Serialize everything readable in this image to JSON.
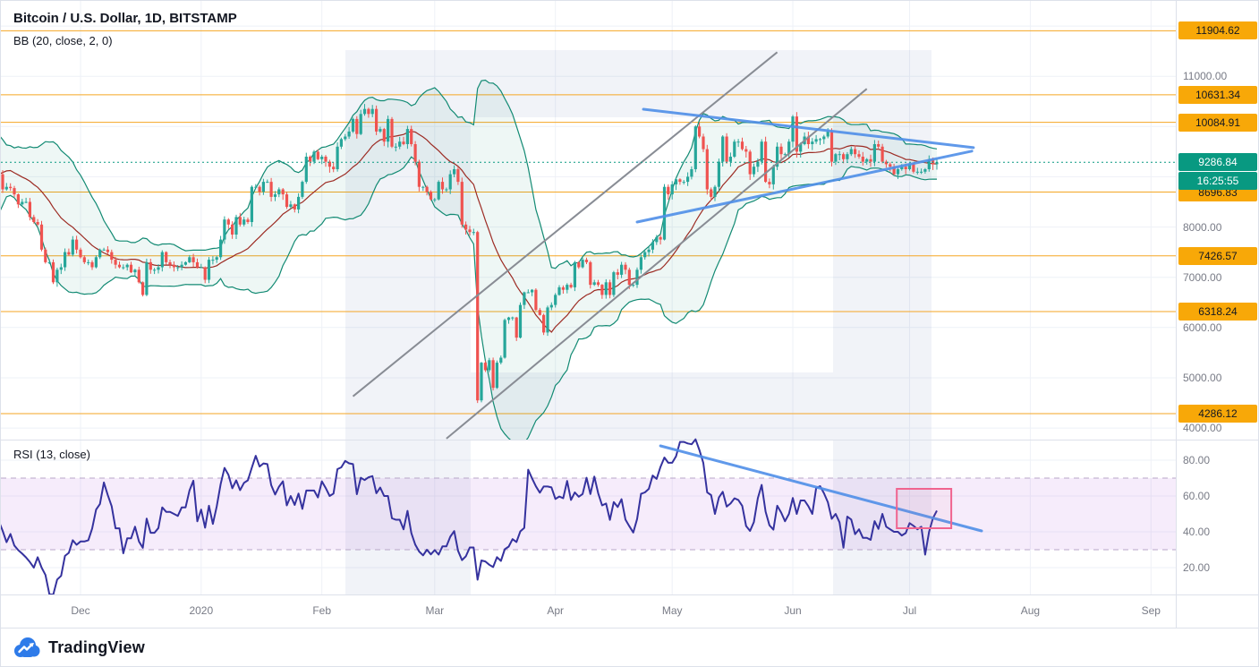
{
  "header": {
    "symbol_title": "Bitcoin / U.S. Dollar, 1D, BITSTAMP",
    "indicator_label": "BB (20, close, 2, 0)",
    "rsi_label": "RSI (13, close)"
  },
  "price_axis": {
    "levels": [
      {
        "label": "11904.62",
        "price": 11904.62
      },
      {
        "label": "10631.34",
        "price": 10631.34
      },
      {
        "label": "10084.91",
        "price": 10084.91
      },
      {
        "label": "8696.83",
        "price": 8696.83
      },
      {
        "label": "7426.57",
        "price": 7426.57
      },
      {
        "label": "6318.24",
        "price": 6318.24
      },
      {
        "label": "4286.12",
        "price": 4286.12
      }
    ],
    "ticks": [
      {
        "label": "11000.00",
        "price": 11000
      },
      {
        "label": "8000.00",
        "price": 8000
      },
      {
        "label": "7000.00",
        "price": 7000
      },
      {
        "label": "6000.00",
        "price": 6000
      },
      {
        "label": "5000.00",
        "price": 5000
      },
      {
        "label": "4000.00",
        "price": 4000
      }
    ],
    "current": {
      "label": "9286.84",
      "price": 9286.84,
      "countdown": "16:25:55"
    }
  },
  "rsi_axis": {
    "ticks": [
      {
        "label": "80.00",
        "value": 80
      },
      {
        "label": "60.00",
        "value": 60
      },
      {
        "label": "40.00",
        "value": 40
      },
      {
        "label": "20.00",
        "value": 20
      }
    ],
    "band": [
      30,
      70
    ]
  },
  "time_axis": {
    "months": [
      {
        "label": "Dec",
        "day": 20
      },
      {
        "label": "2020",
        "day": 51
      },
      {
        "label": "Feb",
        "day": 82
      },
      {
        "label": "Mar",
        "day": 111
      },
      {
        "label": "Apr",
        "day": 142
      },
      {
        "label": "May",
        "day": 172
      },
      {
        "label": "Jun",
        "day": 203
      },
      {
        "label": "Jul",
        "day": 233
      },
      {
        "label": "Aug",
        "day": 264
      },
      {
        "label": "Sep",
        "day": 295
      }
    ]
  },
  "chart_data": {
    "type": "candlestick",
    "symbol": "Bitcoin / U.S. Dollar",
    "interval": "1D",
    "exchange": "BITSTAMP",
    "price_ylim": [
      3770,
      12500
    ],
    "rsi_ylim": [
      5,
      91.5
    ],
    "warmup_bars": 20,
    "indicators": {
      "bollinger": {
        "length": 20,
        "source": "close",
        "stdev": 2,
        "offset": 0
      },
      "rsi": {
        "length": 13,
        "source": "close"
      }
    },
    "closes": [
      8050,
      8150,
      8650,
      9550,
      9250,
      9400,
      9200,
      9150,
      9400,
      9150,
      9250,
      9200,
      9300,
      9350,
      9250,
      9300,
      8800,
      8750,
      8800,
      9050,
      8750,
      8800,
      8775,
      8650,
      8450,
      8500,
      8500,
      8200,
      8100,
      8050,
      7550,
      7300,
      7300,
      6900,
      7150,
      7200,
      7500,
      7450,
      7750,
      7550,
      7400,
      7300,
      7300,
      7200,
      7400,
      7550,
      7550,
      7500,
      7350,
      7250,
      7200,
      7200,
      7250,
      7100,
      7150,
      6900,
      6650,
      7300,
      7150,
      7150,
      7200,
      7500,
      7300,
      7250,
      7200,
      7200,
      7250,
      7300,
      7400,
      7300,
      7200,
      7200,
      6950,
      7350,
      7350,
      7400,
      7750,
      8150,
      8050,
      7850,
      8200,
      8050,
      8150,
      8100,
      8800,
      8800,
      8700,
      8900,
      8900,
      8600,
      8650,
      8750,
      8650,
      8400,
      8450,
      8350,
      8600,
      8900,
      9400,
      9300,
      9500,
      9350,
      9400,
      9300,
      9200,
      9150,
      9600,
      9750,
      9800,
      9900,
      10150,
      9850,
      10250,
      10350,
      10250,
      10350,
      9900,
      9950,
      9700,
      10150,
      9600,
      9600,
      9700,
      9650,
      9950,
      9650,
      9300,
      8800,
      8800,
      8700,
      8550,
      8550,
      8900,
      8750,
      8750,
      9050,
      9150,
      8900,
      8050,
      7950,
      7900,
      7900,
      4550,
      5300,
      5150,
      5350,
      4800,
      5300,
      5400,
      6150,
      6200,
      6200,
      5800,
      6450,
      6700,
      6700,
      6750,
      6350,
      6250,
      5900,
      6400,
      6450,
      6650,
      6800,
      6750,
      6850,
      6800,
      7300,
      7200,
      7350,
      7300,
      6850,
      6900,
      6850,
      6650,
      6900,
      6650,
      7100,
      7050,
      7250,
      7150,
      6850,
      6850,
      7150,
      7400,
      7500,
      7550,
      7700,
      7800,
      7750,
      8800,
      8650,
      8850,
      8950,
      8900,
      8900,
      9000,
      9150,
      10000,
      9800,
      9550,
      8750,
      8600,
      8800,
      9300,
      9800,
      9300,
      9400,
      9700,
      9700,
      9550,
      9500,
      9050,
      9200,
      9300,
      9700,
      8900,
      8850,
      9200,
      9600,
      9450,
      9450,
      9700,
      10200,
      9500,
      9650,
      9800,
      9650,
      9700,
      9750,
      9750,
      9800,
      9900,
      9300,
      9450,
      9450,
      9350,
      9450,
      9550,
      9450,
      9400,
      9300,
      9350,
      9300,
      9650,
      9600,
      9300,
      9250,
      9200,
      9050,
      9150,
      9200,
      9150,
      9250,
      9100,
      9100,
      9100,
      9150,
      9350,
      9250,
      9287
    ]
  },
  "drawings": {
    "gray_channel": [
      {
        "d1": 90,
        "p1": 4630,
        "d2": 199,
        "p2": 11480
      },
      {
        "d1": 114,
        "p1": 3790,
        "d2": 222,
        "p2": 10750
      }
    ],
    "blue_trendlines": [
      {
        "d1": 164.6,
        "p1": 10345,
        "d2": 249.4,
        "p2": 9580
      },
      {
        "d1": 163,
        "p1": 8100,
        "d2": 249,
        "p2": 9510
      }
    ],
    "rsi_trendline": {
      "d1": 169,
      "v1": 88,
      "d2": 251.5,
      "v2": 40.5
    },
    "rsi_box": {
      "d1": 229.7,
      "d2": 243.7,
      "v1": 42,
      "v2": 64
    }
  },
  "branding": {
    "logo_text": "TradingView"
  },
  "colors": {
    "up": "#26a69a",
    "down": "#ef5350",
    "bb_band": "#128a73",
    "bb_basis": "#9c2b23",
    "bb_fill": "rgba(18,138,115,0.07)",
    "level_line": "#f5a623",
    "level_label_bg": "#f8a808",
    "current_line": "#089981",
    "current_label_bg": "#089981",
    "rsi_line": "#35329e",
    "rsi_band_fill": "rgba(178,96,226,0.12)",
    "rsi_band_border": "#b8a6c9",
    "trend_blue": "#4f8fe8",
    "trend_gray": "#888c94",
    "box_pink": "#f0648f",
    "box_fill": "rgba(240,100,143,0.06)",
    "grid": "#eef1f7",
    "axis_text": "#787b86",
    "frame": "#dde1ea",
    "watermark": "rgba(105,120,180,0.09)",
    "logo_blue": "#2e7be9",
    "text_dark": "#131722"
  }
}
